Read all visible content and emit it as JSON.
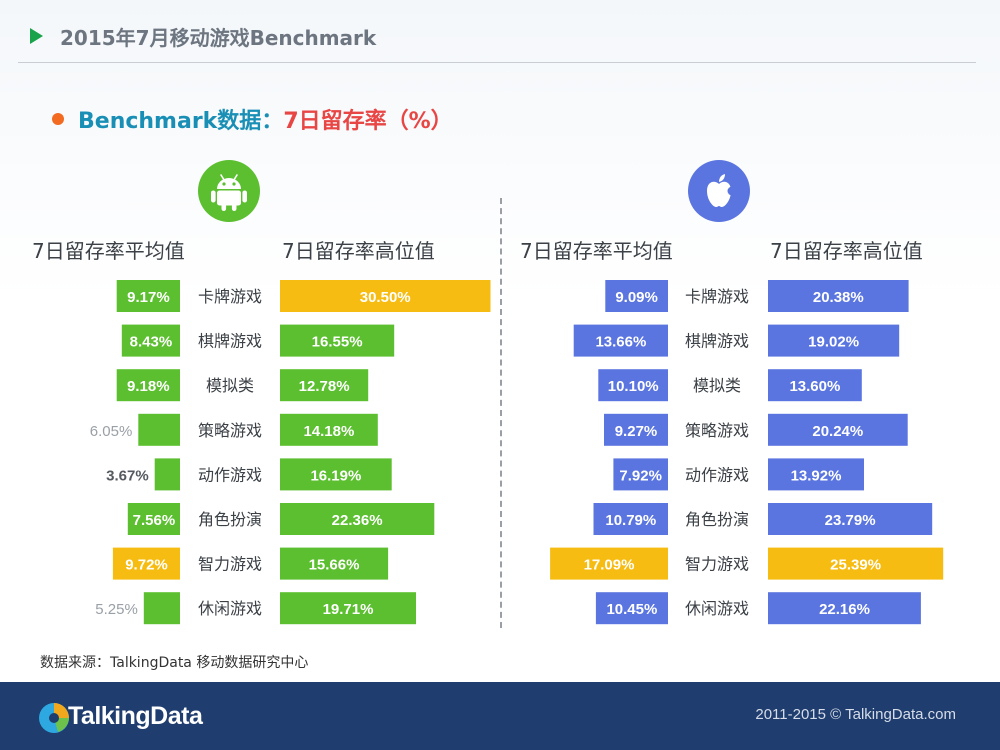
{
  "header": {
    "title": "2015年7月移动游戏Benchmark"
  },
  "subtitle": {
    "part1": "Benchmark数据：",
    "part2": "7日留存率（%）"
  },
  "colors": {
    "android_green": "#5bbf2f",
    "ios_blue": "#5b75e0",
    "highlight_yellow": "#f7bc12",
    "header_green": "#1aa34a",
    "footer_navy": "#1f3d6e"
  },
  "icons": {
    "android": "android-icon",
    "ios": "apple-icon"
  },
  "column_headers": {
    "android_avg": "7日留存率平均值",
    "android_high": "7日留存率高位值",
    "ios_avg": "7日留存率平均值",
    "ios_high": "7日留存率高位值"
  },
  "chart_data": {
    "type": "bar",
    "categories": [
      "卡牌游戏",
      "棋牌游戏",
      "模拟类",
      "策略游戏",
      "动作游戏",
      "角色扮演",
      "智力游戏",
      "休闲游戏"
    ],
    "series": [
      {
        "name": "7日留存率平均值",
        "platform": "android",
        "values": [
          9.17,
          8.43,
          9.18,
          6.05,
          3.67,
          7.56,
          9.72,
          5.25
        ],
        "labels": [
          "9.17%",
          "8.43%",
          "9.18%",
          "6.05%",
          "3.67%",
          "7.56%",
          "9.72%",
          "5.25%"
        ],
        "highlight_index": 6
      },
      {
        "name": "7日留存率高位值",
        "platform": "android",
        "values": [
          30.5,
          16.55,
          12.78,
          14.18,
          16.19,
          22.36,
          15.66,
          19.71
        ],
        "labels": [
          "30.50%",
          "16.55%",
          "12.78%",
          "14.18%",
          "16.19%",
          "22.36%",
          "15.66%",
          "19.71%"
        ],
        "highlight_index": 0
      },
      {
        "name": "7日留存率平均值",
        "platform": "ios",
        "values": [
          9.09,
          13.66,
          10.1,
          9.27,
          7.92,
          10.79,
          17.09,
          10.45
        ],
        "labels": [
          "9.09%",
          "13.66%",
          "10.10%",
          "9.27%",
          "7.92%",
          "10.79%",
          "17.09%",
          "10.45%"
        ],
        "highlight_index": 6
      },
      {
        "name": "7日留存率高位值",
        "platform": "ios",
        "values": [
          20.38,
          19.02,
          13.6,
          20.24,
          13.92,
          23.79,
          25.39,
          22.16
        ],
        "labels": [
          "20.38%",
          "19.02%",
          "13.60%",
          "20.24%",
          "13.92%",
          "23.79%",
          "25.39%",
          "22.16%"
        ],
        "highlight_index": 6
      }
    ],
    "outside_labels": {
      "android_avg": [
        3,
        4,
        7
      ]
    }
  },
  "source": "数据来源：TalkingData 移动数据研究中心",
  "footer": {
    "brand": "TalkingData",
    "copyright": "2011-2015 © TalkingData.com"
  }
}
